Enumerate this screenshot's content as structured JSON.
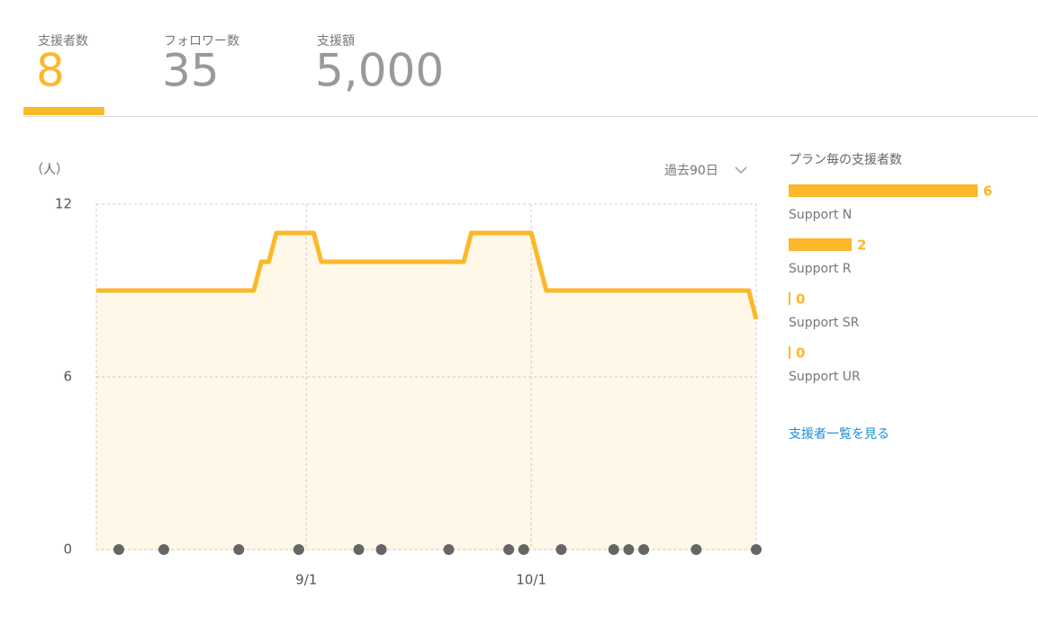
{
  "tabs": [
    {
      "label": "支援者数",
      "value": 8
    },
    {
      "label": "フォロワー数",
      "value": 35
    },
    {
      "label": "支援額",
      "value": 5000,
      "value_label": "5,000"
    }
  ],
  "chart_data": {
    "type": "line",
    "y_unit": "（人）",
    "period": "過去90日",
    "x": [
      -28,
      -7,
      -6,
      -5,
      -4,
      1,
      2,
      21,
      22,
      30,
      32,
      59,
      60
    ],
    "series": [
      {
        "color": "#fbb82a",
        "values": [
          9,
          9,
          10,
          10,
          11,
          11,
          10,
          10,
          11,
          11,
          9,
          9,
          8
        ]
      }
    ],
    "event_x": [
      -25,
      -19,
      -9,
      -1,
      7,
      10,
      19,
      27,
      29,
      34,
      41,
      43,
      45,
      52,
      60
    ],
    "xlim": [
      -28,
      60
    ],
    "xticks": [
      {
        "value": 0,
        "label": "9/1"
      },
      {
        "value": 30,
        "label": "10/1"
      }
    ],
    "ylim": [
      0,
      12
    ],
    "yticks": [
      0,
      6,
      12
    ],
    "grid": true
  },
  "plans": {
    "title": "プラン毎の支援者数",
    "color": "#fbb82a",
    "items": [
      {
        "name": "Support N",
        "value": 6
      },
      {
        "name": "Support R",
        "value": 2
      },
      {
        "name": "Support SR",
        "value": 0
      },
      {
        "name": "Support UR",
        "value": 0
      }
    ],
    "link": "支援者一覧を見る"
  }
}
